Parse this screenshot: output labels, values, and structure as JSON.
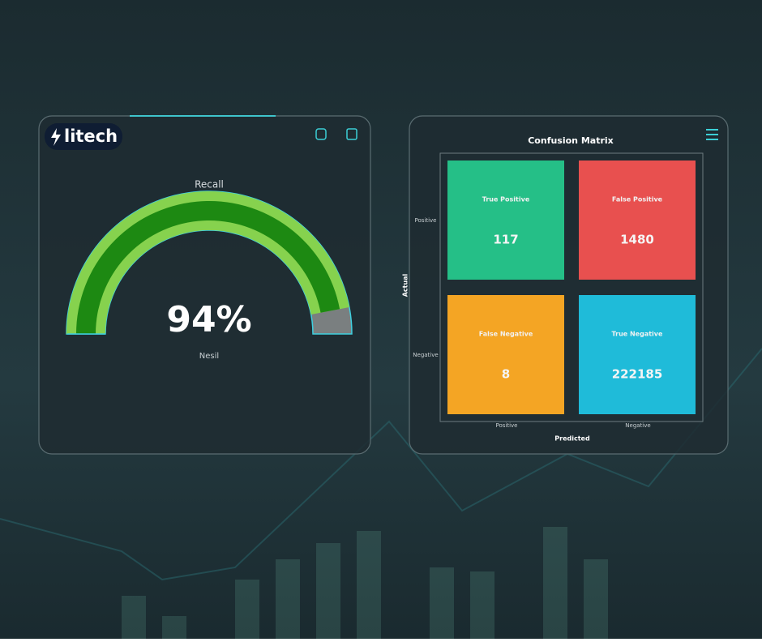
{
  "brand": "litech",
  "gauge": {
    "type": "gauge",
    "title": "Recall",
    "value": 94,
    "value_label": "94%",
    "subtitle": "Nesil",
    "range": [
      0,
      100
    ]
  },
  "matrix": {
    "type": "confusion-matrix",
    "title": "Confusion Matrix",
    "x_label": "Predicted",
    "y_label": "Actual",
    "x_categories": [
      "Positive",
      "Negative"
    ],
    "y_categories": [
      "Positive",
      "Negative"
    ],
    "cells": [
      {
        "label": "True Positive",
        "value": 117,
        "color": "#25bf87"
      },
      {
        "label": "False Positive",
        "value": 1480,
        "color": "#e8504f"
      },
      {
        "label": "False Negative",
        "value": 8,
        "color": "#f4a524"
      },
      {
        "label": "True Negative",
        "value": 222185,
        "color": "#1fbbd9"
      }
    ]
  }
}
